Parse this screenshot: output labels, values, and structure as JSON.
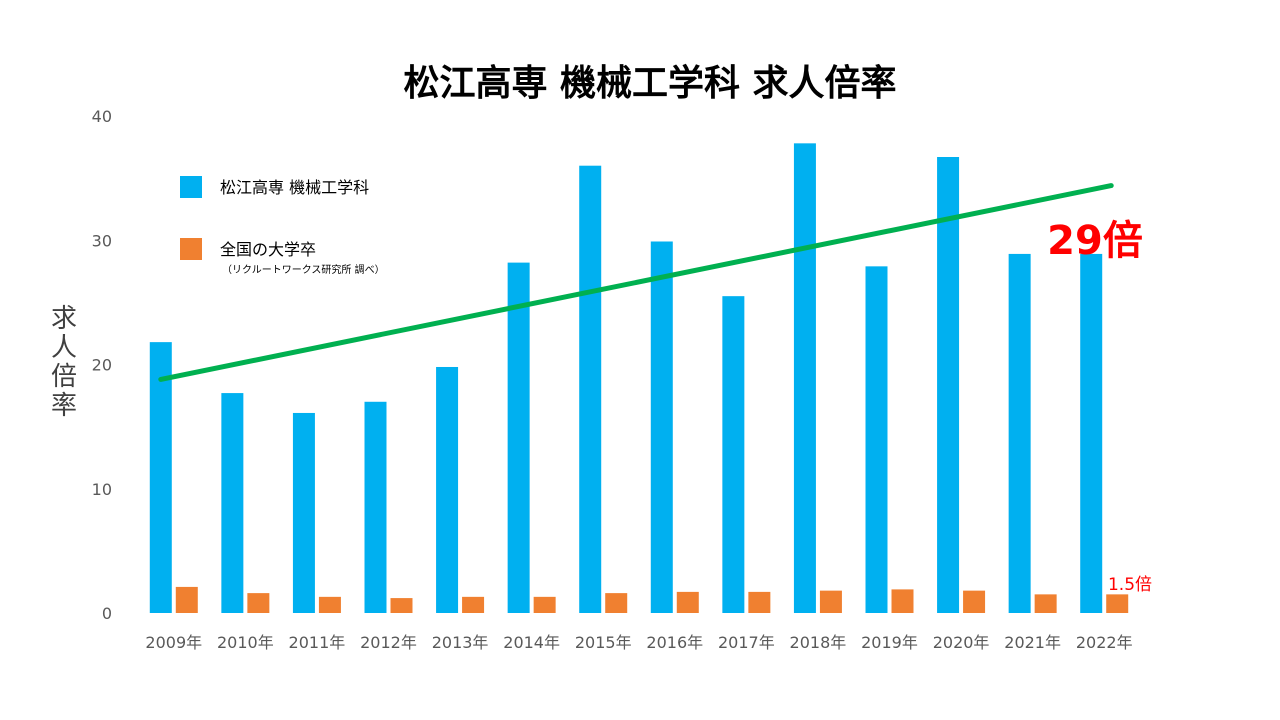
{
  "chart_data": {
    "type": "bar",
    "title": "松江高専 機械工学科 求人倍率",
    "ylabel": "求人倍率",
    "ylabel_chars": [
      "求",
      "人",
      "倍",
      "率"
    ],
    "ylim": [
      0,
      40
    ],
    "yticks": [
      {
        "value": 0,
        "label": "0"
      },
      {
        "value": 10,
        "label": "10"
      },
      {
        "value": 20,
        "label": "20"
      },
      {
        "value": 30,
        "label": "30"
      },
      {
        "value": 40,
        "label": "40"
      }
    ],
    "grid": false,
    "legend_position": "top-left",
    "categories": [
      "2009年",
      "2010年",
      "2011年",
      "2012年",
      "2013年",
      "2014年",
      "2015年",
      "2016年",
      "2017年",
      "2018年",
      "2019年",
      "2020年",
      "2021年",
      "2022年"
    ],
    "series": [
      {
        "name": "松江高専 機械工学科",
        "color": "#00B0F0",
        "values": [
          21.8,
          17.7,
          16.1,
          17.0,
          19.8,
          28.2,
          36.0,
          29.9,
          25.5,
          37.8,
          27.9,
          36.7,
          28.9,
          28.9
        ]
      },
      {
        "name": "全国の大学卒",
        "note": "（リクルートワークス研究所 調べ）",
        "color": "#F08030",
        "values": [
          2.1,
          1.6,
          1.3,
          1.2,
          1.3,
          1.3,
          1.6,
          1.7,
          1.7,
          1.8,
          1.9,
          1.8,
          1.5,
          1.5
        ]
      }
    ],
    "trendline": {
      "color": "#00B050",
      "start": {
        "x": "2009年",
        "y": 18.8
      },
      "end": {
        "x": "2022年",
        "y": 34.4
      }
    },
    "annotations": [
      {
        "text": "29倍",
        "color": "#FF0000",
        "size": "large"
      },
      {
        "text": "1.5倍",
        "color": "#FF0000",
        "size": "small"
      }
    ]
  }
}
